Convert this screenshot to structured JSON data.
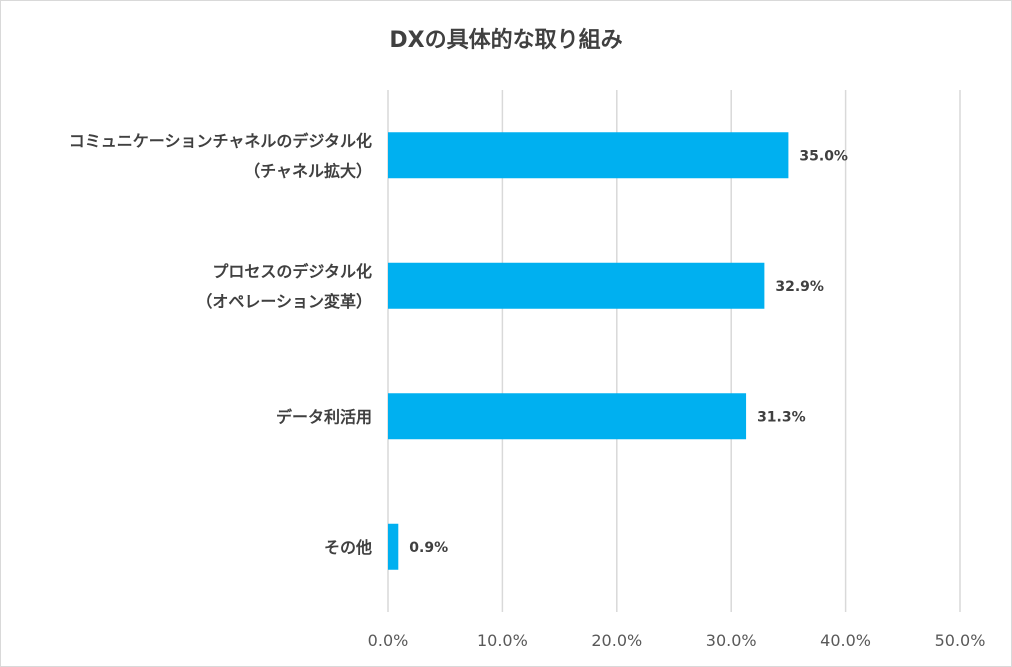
{
  "chart_data": {
    "type": "bar",
    "orientation": "horizontal",
    "title": "DXの具体的な取り組み",
    "categories": [
      [
        "コミュニケーションチャネルのデジタル化",
        "（チャネル拡大）"
      ],
      [
        "プロセスのデジタル化",
        "（オペレーション変革）"
      ],
      [
        "データ利活用"
      ],
      [
        "その他"
      ]
    ],
    "values": [
      35.0,
      32.9,
      31.3,
      0.9
    ],
    "value_labels": [
      "35.0%",
      "32.9%",
      "31.3%",
      "0.9%"
    ],
    "xlim": [
      0,
      50
    ],
    "xticks": [
      0,
      10,
      20,
      30,
      40,
      50
    ],
    "xtick_labels": [
      "0.0%",
      "10.0%",
      "20.0%",
      "30.0%",
      "40.0%",
      "50.0%"
    ],
    "grid": true,
    "bar_color": "#00b0f0",
    "grid_color": "#d9d9d9"
  }
}
